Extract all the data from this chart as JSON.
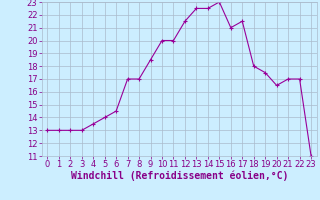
{
  "x": [
    0,
    1,
    2,
    3,
    4,
    5,
    6,
    7,
    8,
    9,
    10,
    11,
    12,
    13,
    14,
    15,
    16,
    17,
    18,
    19,
    20,
    21,
    22,
    23
  ],
  "y": [
    13,
    13,
    13,
    13,
    13.5,
    14,
    14.5,
    17,
    17,
    18.5,
    20,
    20,
    21.5,
    22.5,
    22.5,
    23,
    21,
    21.5,
    18,
    17.5,
    16.5,
    17,
    17,
    11
  ],
  "line_color": "#990099",
  "marker_color": "#990099",
  "bg_color": "#cceeff",
  "grid_color": "#aabbcc",
  "xlabel": "Windchill (Refroidissement éolien,°C)",
  "ylim": [
    11,
    23
  ],
  "xlim": [
    -0.5,
    23.5
  ],
  "yticks": [
    11,
    12,
    13,
    14,
    15,
    16,
    17,
    18,
    19,
    20,
    21,
    22,
    23
  ],
  "xticks": [
    0,
    1,
    2,
    3,
    4,
    5,
    6,
    7,
    8,
    9,
    10,
    11,
    12,
    13,
    14,
    15,
    16,
    17,
    18,
    19,
    20,
    21,
    22,
    23
  ],
  "label_color": "#880088",
  "tick_fontsize": 6,
  "xlabel_fontsize": 7,
  "linewidth": 0.8,
  "markersize": 3.5,
  "markeredgewidth": 0.8
}
